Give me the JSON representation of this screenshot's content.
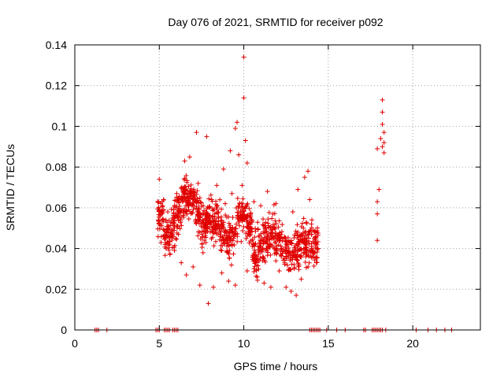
{
  "chart_data": {
    "type": "scatter",
    "title": "Day 076 of 2021, SRMTID for receiver p092",
    "xlabel": "GPS time / hours",
    "ylabel": "SRMTID / TECUs",
    "xlim": [
      0,
      24
    ],
    "ylim": [
      0,
      0.14
    ],
    "xticks": [
      0,
      5,
      10,
      15,
      20
    ],
    "xtick_labels": [
      "0",
      "5",
      "10",
      "15",
      "20"
    ],
    "yticks": [
      0,
      0.02,
      0.04,
      0.06,
      0.08,
      0.1,
      0.12,
      0.14
    ],
    "ytick_labels": [
      "0",
      "0.02",
      "0.04",
      "0.06",
      "0.08",
      "0.1",
      "0.12",
      "0.14"
    ],
    "grid": true,
    "marker": "+",
    "color": "#e00000",
    "series": [
      {
        "name": "SRMTID",
        "note": "dense cloud of ~1100 points between 4.8 h and 14.4 h, values 0.013–0.134 TECU; separate clusters near 18 h; zero values along the x-axis",
        "points": [
          [
            10.0,
            0.134
          ],
          [
            10.0,
            0.114
          ],
          [
            9.6,
            0.102
          ],
          [
            9.5,
            0.099
          ],
          [
            7.2,
            0.097
          ],
          [
            10.1,
            0.093
          ],
          [
            9.2,
            0.088
          ],
          [
            9.7,
            0.086
          ],
          [
            10.2,
            0.082
          ],
          [
            6.8,
            0.085
          ],
          [
            7.8,
            0.095
          ],
          [
            6.5,
            0.083
          ],
          [
            8.8,
            0.079
          ],
          [
            8.4,
            0.071
          ],
          [
            5.0,
            0.074
          ],
          [
            5.2,
            0.061
          ],
          [
            5.0,
            0.052
          ],
          [
            5.1,
            0.043
          ],
          [
            5.3,
            0.049
          ],
          [
            5.5,
            0.058
          ],
          [
            5.6,
            0.046
          ],
          [
            5.9,
            0.039
          ],
          [
            6.3,
            0.033
          ],
          [
            6.6,
            0.027
          ],
          [
            7.0,
            0.031
          ],
          [
            7.4,
            0.022
          ],
          [
            7.9,
            0.013
          ],
          [
            8.2,
            0.021
          ],
          [
            8.7,
            0.028
          ],
          [
            9.1,
            0.024
          ],
          [
            9.5,
            0.022
          ],
          [
            10.2,
            0.029
          ],
          [
            10.8,
            0.026
          ],
          [
            11.2,
            0.023
          ],
          [
            11.6,
            0.021
          ],
          [
            12.1,
            0.029
          ],
          [
            12.5,
            0.021
          ],
          [
            12.8,
            0.019
          ],
          [
            13.1,
            0.017
          ],
          [
            13.4,
            0.025
          ],
          [
            13.8,
            0.031
          ],
          [
            14.1,
            0.036
          ],
          [
            14.2,
            0.038
          ],
          [
            14.0,
            0.052
          ],
          [
            13.9,
            0.064
          ],
          [
            13.8,
            0.078
          ],
          [
            13.6,
            0.075
          ],
          [
            13.2,
            0.069
          ],
          [
            12.9,
            0.058
          ],
          [
            11.9,
            0.062
          ],
          [
            11.4,
            0.068
          ],
          [
            11.0,
            0.061
          ],
          [
            10.6,
            0.063
          ],
          [
            10.4,
            0.057
          ],
          [
            9.9,
            0.071
          ],
          [
            9.3,
            0.067
          ],
          [
            8.9,
            0.062
          ],
          [
            8.5,
            0.058
          ],
          [
            8.1,
            0.064
          ],
          [
            7.6,
            0.061
          ],
          [
            7.3,
            0.072
          ],
          [
            6.9,
            0.068
          ],
          [
            6.4,
            0.065
          ],
          [
            6.1,
            0.055
          ],
          [
            5.8,
            0.049
          ],
          [
            17.9,
            0.044
          ],
          [
            17.9,
            0.057
          ],
          [
            17.9,
            0.063
          ],
          [
            18.0,
            0.069
          ],
          [
            17.9,
            0.089
          ],
          [
            18.2,
            0.113
          ],
          [
            18.2,
            0.107
          ],
          [
            18.2,
            0.101
          ],
          [
            18.3,
            0.097
          ],
          [
            18.3,
            0.092
          ],
          [
            18.3,
            0.087
          ],
          [
            18.1,
            0.094
          ],
          [
            18.2,
            0.09
          ]
        ],
        "zero_x": [
          1.2,
          1.3,
          1.4,
          1.9,
          4.8,
          4.9,
          5.0,
          5.3,
          5.4,
          5.5,
          5.6,
          5.8,
          5.9,
          6.0,
          6.1,
          13.9,
          14.0,
          14.1,
          14.2,
          14.3,
          14.4,
          14.5,
          14.9,
          15.5,
          16.0,
          17.1,
          17.2,
          17.6,
          17.7,
          17.8,
          17.9,
          18.0,
          18.1,
          18.2,
          18.4,
          20.2,
          20.9,
          21.4,
          21.9,
          22.3
        ]
      }
    ]
  }
}
